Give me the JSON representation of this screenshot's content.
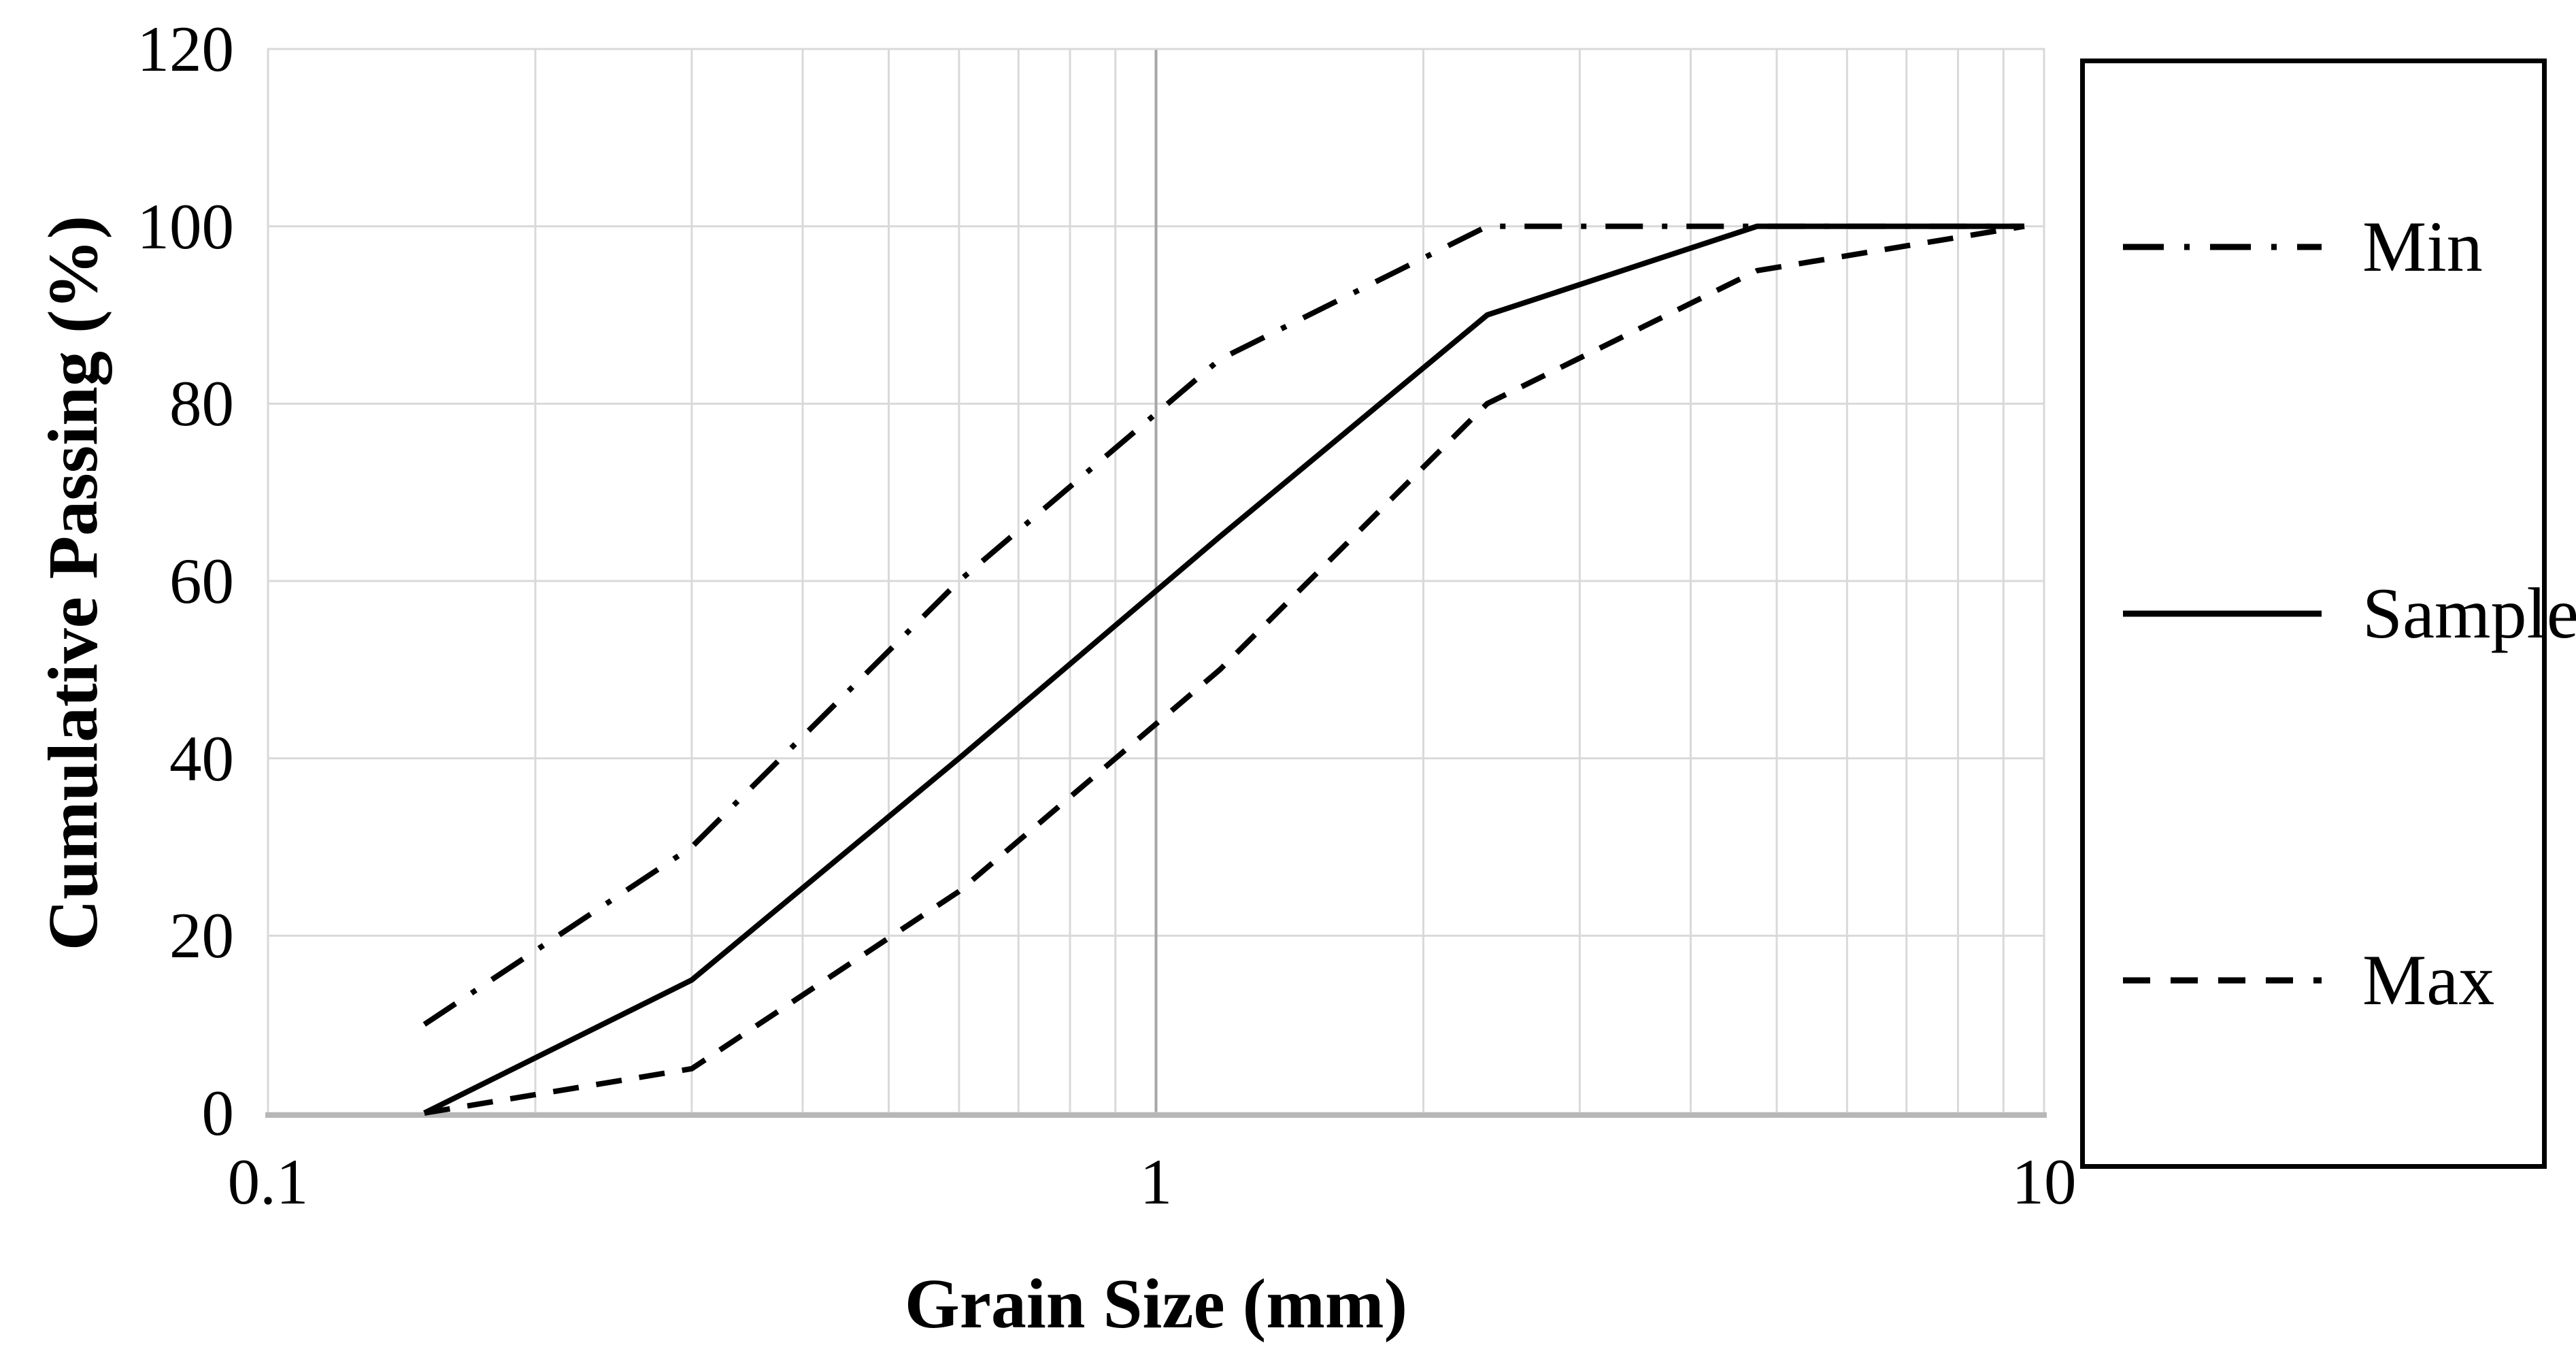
{
  "chart_data": {
    "type": "line",
    "title": "",
    "x_axis": {
      "label": "Grain Size (mm)",
      "scale": "log",
      "min": 0.1,
      "max": 10,
      "ticks": [
        0.1,
        1,
        10
      ],
      "tick_labels": [
        "0.1",
        "1",
        "10"
      ],
      "minor_gridlines": [
        0.2,
        0.3,
        0.4,
        0.5,
        0.6,
        0.7,
        0.8,
        0.9,
        2,
        3,
        4,
        5,
        6,
        7,
        8,
        9
      ],
      "major_gridlines": [
        1
      ]
    },
    "y_axis": {
      "label": "Cumulative Passing (%)",
      "scale": "linear",
      "min": 0,
      "max": 120,
      "tick_step": 20,
      "ticks": [
        0,
        20,
        40,
        60,
        80,
        100,
        120
      ],
      "tick_labels": [
        "0",
        "20",
        "40",
        "60",
        "80",
        "100",
        "120"
      ]
    },
    "grid": {
      "on": true
    },
    "legend_position": "right",
    "series": [
      {
        "name": "Min",
        "style": "dash-dot",
        "x": [
          0.15,
          0.3,
          0.6,
          1.18,
          2.36,
          4.75,
          9.5
        ],
        "values": [
          10,
          30,
          60,
          85,
          100,
          100,
          100
        ]
      },
      {
        "name": "Sample",
        "style": "solid",
        "x": [
          0.15,
          0.3,
          0.6,
          1.18,
          2.36,
          4.75,
          9.5
        ],
        "values": [
          0,
          15,
          40,
          65,
          90,
          100,
          100
        ]
      },
      {
        "name": "Max",
        "style": "dashed",
        "x": [
          0.15,
          0.3,
          0.6,
          1.18,
          2.36,
          4.75,
          9.5
        ],
        "values": [
          0,
          5,
          25,
          50,
          80,
          95,
          100
        ]
      }
    ]
  },
  "colors": {
    "series_line": "#000000",
    "gridline": "#d9d9d9",
    "major_gridline": "#a6a6a6",
    "axis_line": "#b7b7b7",
    "plot_border": "#d9d9d9",
    "background": "#ffffff",
    "legend_border": "#000000",
    "text": "#000000"
  },
  "dash_patterns": {
    "solid": "",
    "dashed": "38 26",
    "dash-dot": "55 28 8 28",
    "legend_dashed": "40 30",
    "legend_dash-dot": "60 30 8 30"
  }
}
